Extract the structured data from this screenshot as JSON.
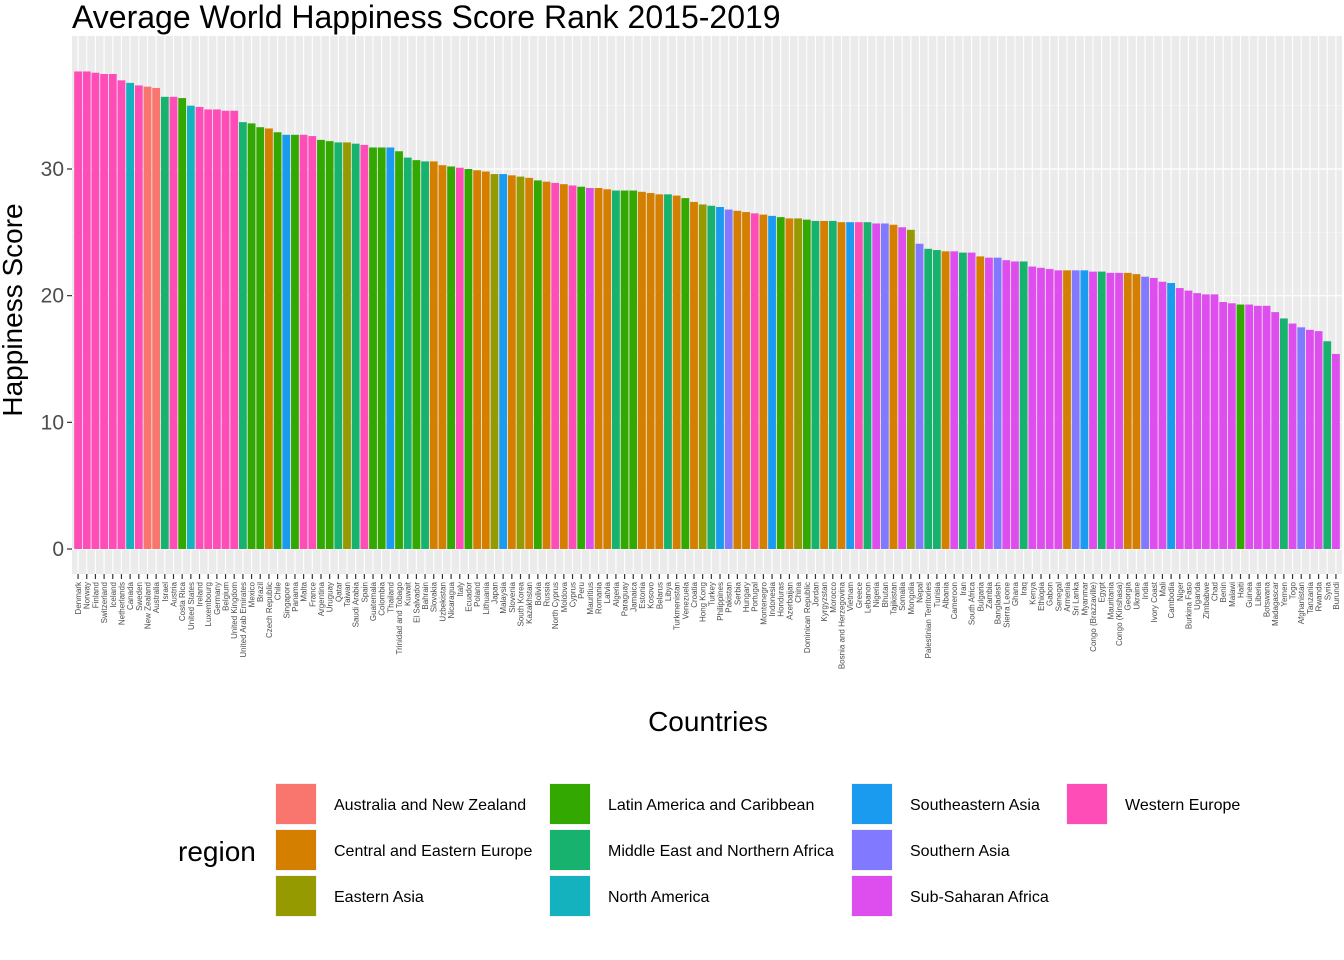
{
  "chart_data": {
    "type": "bar",
    "title": "Average World Happiness Score Rank 2015-2019",
    "xlabel": "Countries",
    "ylabel": "Happiness Score",
    "ylim": [
      0,
      38
    ],
    "yticks": [
      0,
      10,
      20,
      30
    ],
    "grid": true,
    "legend_title": "region",
    "legend_position": "bottom",
    "regions": [
      {
        "name": "Australia and New Zealand",
        "color": "#F8766D"
      },
      {
        "name": "Central and Eastern Europe",
        "color": "#D39200"
      },
      {
        "name": "Eastern Asia",
        "color": "#93AA00"
      },
      {
        "name": "Latin America and Caribbean",
        "color": "#00BA38"
      },
      {
        "name": "Middle East and Northern Africa",
        "color": "#00C19F"
      },
      {
        "name": "North America",
        "color": "#00B9E3"
      },
      {
        "name": "Southeastern Asia",
        "color": "#619CFF"
      },
      {
        "name": "Southern Asia",
        "color": "#DB72FB"
      },
      {
        "name": "Sub-Saharan Africa",
        "color": "#FF61C3"
      },
      {
        "name": "Western Europe",
        "color": "#FF61C3"
      }
    ],
    "bars": [
      [
        "Denmark",
        "WE",
        37.7
      ],
      [
        "Norway",
        "WE",
        37.7
      ],
      [
        "Finland",
        "WE",
        37.6
      ],
      [
        "Switzerland",
        "WE",
        37.5
      ],
      [
        "Iceland",
        "WE",
        37.5
      ],
      [
        "Netherlands",
        "WE",
        37.0
      ],
      [
        "Canada",
        "NA",
        36.8
      ],
      [
        "Sweden",
        "WE",
        36.6
      ],
      [
        "New Zealand",
        "ANZ",
        36.5
      ],
      [
        "Australia",
        "ANZ",
        36.4
      ],
      [
        "Israel",
        "MENA",
        35.7
      ],
      [
        "Austria",
        "WE",
        35.7
      ],
      [
        "Costa Rica",
        "LAC",
        35.6
      ],
      [
        "United States",
        "NA",
        35.0
      ],
      [
        "Ireland",
        "WE",
        34.9
      ],
      [
        "Luxembourg",
        "WE",
        34.7
      ],
      [
        "Germany",
        "WE",
        34.7
      ],
      [
        "Belgium",
        "WE",
        34.6
      ],
      [
        "United Kingdom",
        "WE",
        34.6
      ],
      [
        "United Arab Emirates",
        "MENA",
        33.7
      ],
      [
        "Mexico",
        "LAC",
        33.6
      ],
      [
        "Brazil",
        "LAC",
        33.3
      ],
      [
        "Czech Republic",
        "CEE",
        33.2
      ],
      [
        "Chile",
        "LAC",
        32.9
      ],
      [
        "Singapore",
        "SEA",
        32.7
      ],
      [
        "Panama",
        "LAC",
        32.7
      ],
      [
        "Malta",
        "WE",
        32.7
      ],
      [
        "France",
        "WE",
        32.6
      ],
      [
        "Argentina",
        "LAC",
        32.3
      ],
      [
        "Uruguay",
        "LAC",
        32.2
      ],
      [
        "Qatar",
        "MENA",
        32.1
      ],
      [
        "Taiwan",
        "EA",
        32.1
      ],
      [
        "Saudi Arabia",
        "MENA",
        32.0
      ],
      [
        "Spain",
        "WE",
        31.9
      ],
      [
        "Guatemala",
        "LAC",
        31.7
      ],
      [
        "Colombia",
        "LAC",
        31.7
      ],
      [
        "Thailand",
        "SEA",
        31.7
      ],
      [
        "Trinidad and Tobago",
        "LAC",
        31.4
      ],
      [
        "Kuwait",
        "MENA",
        30.9
      ],
      [
        "El Salvador",
        "LAC",
        30.7
      ],
      [
        "Bahrain",
        "MENA",
        30.6
      ],
      [
        "Slovakia",
        "CEE",
        30.6
      ],
      [
        "Uzbekistan",
        "CEE",
        30.3
      ],
      [
        "Nicaragua",
        "LAC",
        30.2
      ],
      [
        "Italy",
        "WE",
        30.1
      ],
      [
        "Ecuador",
        "LAC",
        30.0
      ],
      [
        "Poland",
        "CEE",
        29.9
      ],
      [
        "Lithuania",
        "CEE",
        29.8
      ],
      [
        "Japan",
        "EA",
        29.6
      ],
      [
        "Malaysia",
        "SEA",
        29.6
      ],
      [
        "Slovenia",
        "CEE",
        29.5
      ],
      [
        "South Korea",
        "EA",
        29.4
      ],
      [
        "Kazakhstan",
        "CEE",
        29.3
      ],
      [
        "Bolivia",
        "LAC",
        29.1
      ],
      [
        "Russia",
        "CEE",
        29.0
      ],
      [
        "North Cyprus",
        "WE",
        28.9
      ],
      [
        "Moldova",
        "CEE",
        28.8
      ],
      [
        "Cyprus",
        "WE",
        28.7
      ],
      [
        "Peru",
        "LAC",
        28.6
      ],
      [
        "Mauritius",
        "SSA",
        28.5
      ],
      [
        "Romania",
        "CEE",
        28.5
      ],
      [
        "Latvia",
        "CEE",
        28.4
      ],
      [
        "Algeria",
        "MENA",
        28.3
      ],
      [
        "Paraguay",
        "LAC",
        28.3
      ],
      [
        "Jamaica",
        "LAC",
        28.3
      ],
      [
        "Estonia",
        "CEE",
        28.2
      ],
      [
        "Kosovo",
        "CEE",
        28.1
      ],
      [
        "Belarus",
        "CEE",
        28.0
      ],
      [
        "Libya",
        "MENA",
        28.0
      ],
      [
        "Turkmenistan",
        "CEE",
        27.9
      ],
      [
        "Venezuela",
        "LAC",
        27.7
      ],
      [
        "Croatia",
        "CEE",
        27.4
      ],
      [
        "Hong Kong",
        "EA",
        27.2
      ],
      [
        "Turkey",
        "MENA",
        27.1
      ],
      [
        "Philippines",
        "SEA",
        27.0
      ],
      [
        "Pakistan",
        "SA",
        26.8
      ],
      [
        "Serbia",
        "CEE",
        26.7
      ],
      [
        "Hungary",
        "CEE",
        26.6
      ],
      [
        "Portugal",
        "WE",
        26.5
      ],
      [
        "Montenegro",
        "CEE",
        26.4
      ],
      [
        "Indonesia",
        "SEA",
        26.3
      ],
      [
        "Honduras",
        "LAC",
        26.2
      ],
      [
        "Azerbaijan",
        "CEE",
        26.1
      ],
      [
        "China",
        "EA",
        26.1
      ],
      [
        "Dominican Republic",
        "LAC",
        26.0
      ],
      [
        "Jordan",
        "MENA",
        25.9
      ],
      [
        "Kyrgyzstan",
        "CEE",
        25.9
      ],
      [
        "Morocco",
        "MENA",
        25.9
      ],
      [
        "Bosnia and Herzegovina",
        "CEE",
        25.8
      ],
      [
        "Vietnam",
        "SEA",
        25.8
      ],
      [
        "Greece",
        "WE",
        25.8
      ],
      [
        "Lebanon",
        "MENA",
        25.8
      ],
      [
        "Nigeria",
        "SSA",
        25.7
      ],
      [
        "Bhutan",
        "SA",
        25.7
      ],
      [
        "Tajikistan",
        "CEE",
        25.6
      ],
      [
        "Somalia",
        "SSA",
        25.4
      ],
      [
        "Mongolia",
        "EA",
        25.2
      ],
      [
        "Nepal",
        "SA",
        24.1
      ],
      [
        "Palestinian Territories",
        "MENA",
        23.7
      ],
      [
        "Tunisia",
        "MENA",
        23.6
      ],
      [
        "Albania",
        "CEE",
        23.5
      ],
      [
        "Cameroon",
        "SSA",
        23.5
      ],
      [
        "Iran",
        "MENA",
        23.4
      ],
      [
        "South Africa",
        "SSA",
        23.4
      ],
      [
        "Bulgaria",
        "CEE",
        23.1
      ],
      [
        "Zambia",
        "SSA",
        23.0
      ],
      [
        "Bangladesh",
        "SA",
        23.0
      ],
      [
        "Sierra Leone",
        "SSA",
        22.8
      ],
      [
        "Ghana",
        "SSA",
        22.7
      ],
      [
        "Iraq",
        "MENA",
        22.7
      ],
      [
        "Kenya",
        "SSA",
        22.3
      ],
      [
        "Ethiopia",
        "SSA",
        22.2
      ],
      [
        "Gabon",
        "SSA",
        22.1
      ],
      [
        "Senegal",
        "SSA",
        22.0
      ],
      [
        "Armenia",
        "CEE",
        22.0
      ],
      [
        "Sri Lanka",
        "SA",
        22.0
      ],
      [
        "Myanmar",
        "SEA",
        22.0
      ],
      [
        "Congo (Brazzaville)",
        "SSA",
        21.9
      ],
      [
        "Egypt",
        "MENA",
        21.9
      ],
      [
        "Mauritania",
        "SSA",
        21.8
      ],
      [
        "Congo (Kinshasa)",
        "SSA",
        21.8
      ],
      [
        "Georgia",
        "CEE",
        21.8
      ],
      [
        "Ukraine",
        "CEE",
        21.7
      ],
      [
        "India",
        "SA",
        21.5
      ],
      [
        "Ivory Coast",
        "SSA",
        21.4
      ],
      [
        "Mali",
        "SSA",
        21.1
      ],
      [
        "Cambodia",
        "SEA",
        21.0
      ],
      [
        "Niger",
        "SSA",
        20.6
      ],
      [
        "Burkina Faso",
        "SSA",
        20.4
      ],
      [
        "Uganda",
        "SSA",
        20.2
      ],
      [
        "Zimbabwe",
        "SSA",
        20.1
      ],
      [
        "Chad",
        "SSA",
        20.1
      ],
      [
        "Benin",
        "SSA",
        19.5
      ],
      [
        "Malawi",
        "SSA",
        19.4
      ],
      [
        "Haiti",
        "LAC",
        19.3
      ],
      [
        "Guinea",
        "SSA",
        19.3
      ],
      [
        "Liberia",
        "SSA",
        19.2
      ],
      [
        "Botswana",
        "SSA",
        19.2
      ],
      [
        "Madagascar",
        "SSA",
        18.7
      ],
      [
        "Yemen",
        "MENA",
        18.2
      ],
      [
        "Togo",
        "SSA",
        17.8
      ],
      [
        "Afghanistan",
        "SA",
        17.5
      ],
      [
        "Tanzania",
        "SSA",
        17.3
      ],
      [
        "Rwanda",
        "SSA",
        17.2
      ],
      [
        "Syria",
        "MENA",
        16.4
      ],
      [
        "Burundi",
        "SSA",
        15.4
      ]
    ]
  }
}
